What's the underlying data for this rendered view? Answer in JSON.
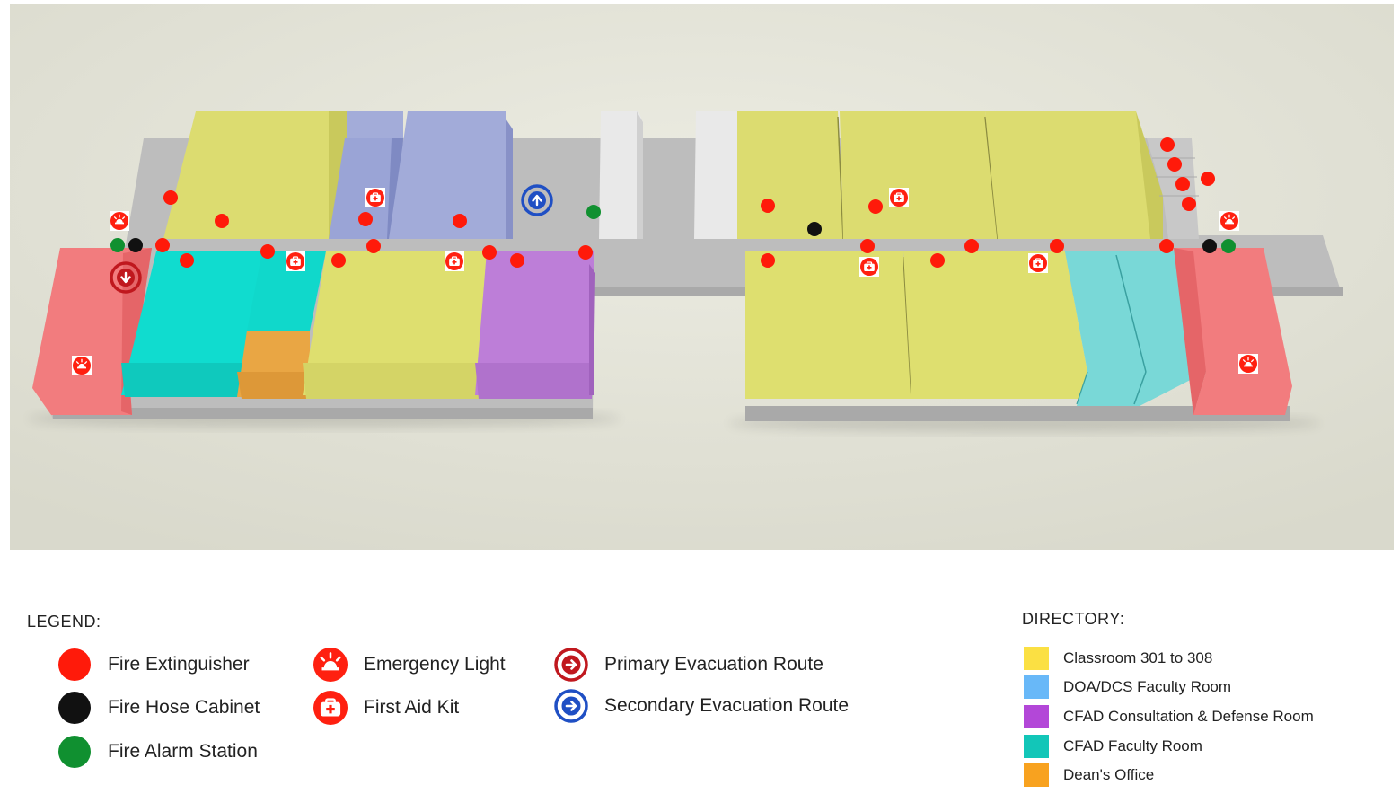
{
  "legend": {
    "title": "LEGEND:",
    "items": [
      {
        "label": "Fire Extinguisher",
        "icon": "fire-extinguisher-dot",
        "color": "#ff1a0a"
      },
      {
        "label": "Fire Hose Cabinet",
        "icon": "fire-hose-cabinet-dot",
        "color": "#111111"
      },
      {
        "label": "Fire Alarm Station",
        "icon": "fire-alarm-station-dot",
        "color": "#109030"
      },
      {
        "label": "Emergency Light",
        "icon": "emergency-light-icon",
        "color": "#ff1a0a"
      },
      {
        "label": "First Aid Kit",
        "icon": "first-aid-kit-icon",
        "color": "#ff1a0a"
      },
      {
        "label": "Primary Evacuation Route",
        "icon": "primary-route-arrow-icon",
        "color": "#c0181e"
      },
      {
        "label": "Secondary Evacuation Route",
        "icon": "secondary-route-arrow-icon",
        "color": "#1f4fc4"
      }
    ]
  },
  "directory": {
    "title": "DIRECTORY:",
    "items": [
      {
        "label": "Classroom 301 to 308",
        "color": "#fbe043"
      },
      {
        "label": "DOA/DCS Faculty Room",
        "color": "#68b8f8"
      },
      {
        "label": "CFAD Consultation & Defense Room",
        "color": "#b347d8"
      },
      {
        "label": "CFAD Faculty Room",
        "color": "#12c6b8"
      },
      {
        "label": "Dean's Office",
        "color": "#f8a21f"
      }
    ]
  },
  "colors": {
    "classroom": "#dede6e",
    "faculty_blue": "#9faad8",
    "consultation": "#bb7ed8",
    "cfad_faculty": "#10d8cc",
    "cfad_faculty_right": "#7ad8d8",
    "dean": "#e8a845",
    "stairs": "#f07a7c",
    "utility": "#e8e8e8",
    "floor": "#bcbcbc",
    "background": "#e2e2d6"
  }
}
